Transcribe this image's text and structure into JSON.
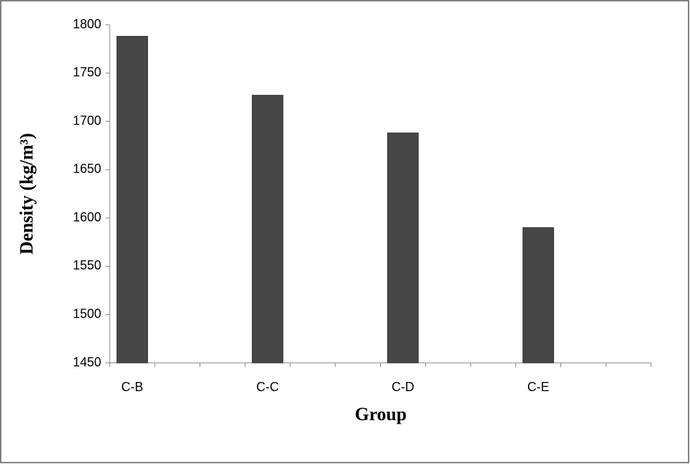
{
  "chart_data": {
    "type": "bar",
    "x_label": "Group",
    "y_label": "Density (kg/m³)",
    "categories": [
      "C-B",
      null,
      null,
      "C-C",
      null,
      null,
      "C-D",
      null,
      null,
      "C-E",
      null,
      null
    ],
    "values": [
      1788,
      null,
      null,
      1727,
      null,
      null,
      1688,
      null,
      null,
      1590,
      null,
      null
    ],
    "color": "#474747",
    "ylim": [
      1450,
      1800
    ],
    "yticks": [
      1450,
      1500,
      1550,
      1600,
      1650,
      1700,
      1750,
      1800
    ],
    "grid": false
  }
}
